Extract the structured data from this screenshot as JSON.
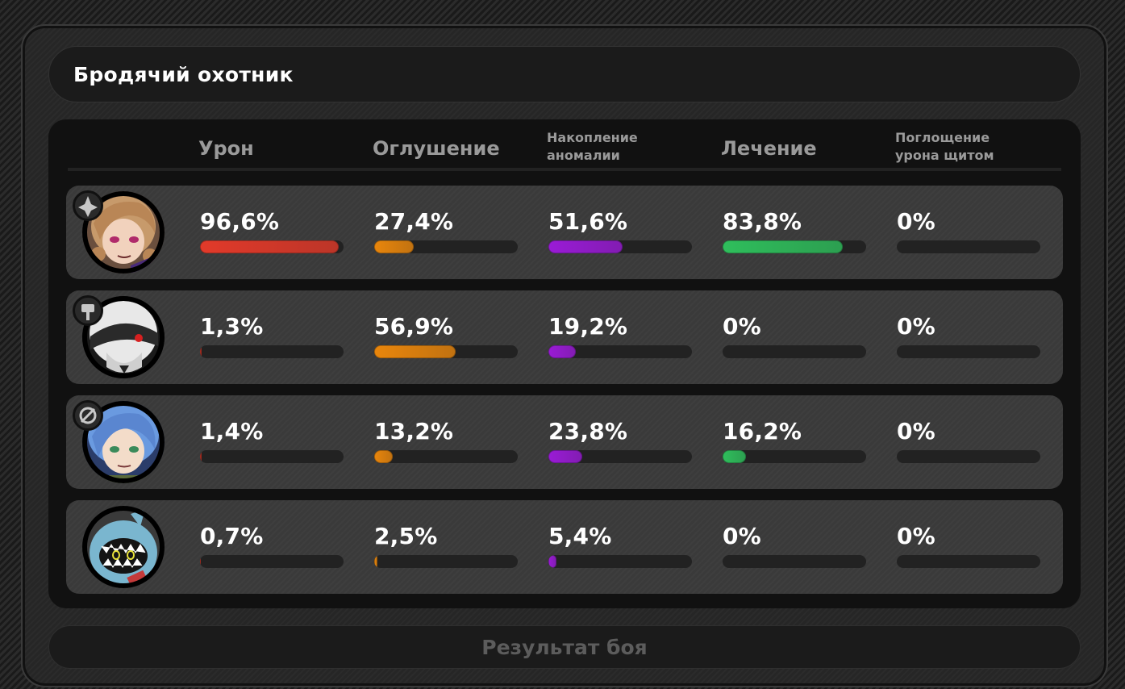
{
  "title": "Бродячий охотник",
  "columns": [
    {
      "label": "Урон",
      "kind": "big"
    },
    {
      "label": "Оглушение",
      "kind": "big"
    },
    {
      "label": "Накопление\nаномалии",
      "kind": "small"
    },
    {
      "label": "Лечение",
      "kind": "big"
    },
    {
      "label": "Поглощение\nурона щитом",
      "kind": "small"
    }
  ],
  "colors": {
    "damage": "#e23a2a",
    "daze": "#e9860c",
    "anomaly": "#9a1bd6",
    "healing": "#2fbe5c",
    "shield": "#9a9a9a"
  },
  "rows": [
    {
      "avatar_icon": "blonde-agent-portrait-icon",
      "role_icon": "attack-role-icon",
      "stats": [
        {
          "label": "96,6%",
          "value": 96.6
        },
        {
          "label": "27,4%",
          "value": 27.4
        },
        {
          "label": "51,6%",
          "value": 51.6
        },
        {
          "label": "83,8%",
          "value": 83.8
        },
        {
          "label": "0%",
          "value": 0
        }
      ]
    },
    {
      "avatar_icon": "masked-agent-portrait-icon",
      "role_icon": "stun-role-icon",
      "stats": [
        {
          "label": "1,3%",
          "value": 1.3
        },
        {
          "label": "56,9%",
          "value": 56.9
        },
        {
          "label": "19,2%",
          "value": 19.2
        },
        {
          "label": "0%",
          "value": 0
        },
        {
          "label": "0%",
          "value": 0
        }
      ]
    },
    {
      "avatar_icon": "blue-haired-agent-portrait-icon",
      "role_icon": "support-role-icon",
      "stats": [
        {
          "label": "1,4%",
          "value": 1.4
        },
        {
          "label": "13,2%",
          "value": 13.2
        },
        {
          "label": "23,8%",
          "value": 23.8
        },
        {
          "label": "16,2%",
          "value": 16.2
        },
        {
          "label": "0%",
          "value": 0
        }
      ]
    },
    {
      "avatar_icon": "shark-bangboo-portrait-icon",
      "role_icon": "",
      "stats": [
        {
          "label": "0,7%",
          "value": 0.7
        },
        {
          "label": "2,5%",
          "value": 2.5
        },
        {
          "label": "5,4%",
          "value": 5.4
        },
        {
          "label": "0%",
          "value": 0
        },
        {
          "label": "0%",
          "value": 0
        }
      ]
    }
  ],
  "footer_label": "Результат боя"
}
